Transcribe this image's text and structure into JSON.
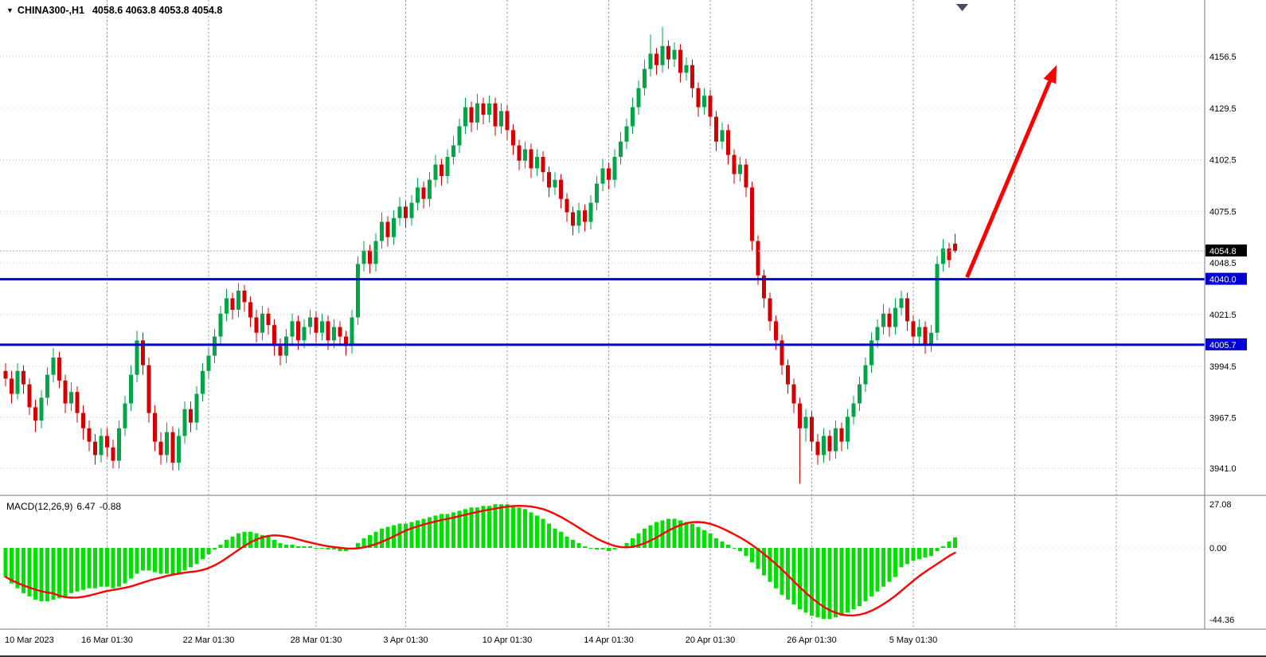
{
  "header": {
    "marker_icon": "▼",
    "symbol_period": "CHINA300-,H1",
    "ohlc_text": "4058.6 4063.8 4053.8 4054.8"
  },
  "indicator_label": {
    "name": "MACD(12,26,9)",
    "macd_value": "6.47",
    "signal_value": "-0.88"
  },
  "price_axis": {
    "ticks": [
      4156.5,
      4129.5,
      4102.5,
      4075.5,
      4048.5,
      4021.5,
      3994.5,
      3967.5,
      3941.0
    ],
    "current_price": {
      "label": "4054.8",
      "value": 4054.8,
      "bg": "#000000",
      "fg": "#ffffff"
    },
    "level_badges": [
      {
        "label": "4040.0",
        "value": 4040.0,
        "bg": "#0000d6",
        "fg": "#ffffff"
      },
      {
        "label": "4005.7",
        "value": 4005.7,
        "bg": "#0000d6",
        "fg": "#ffffff"
      }
    ]
  },
  "macd_axis": {
    "ticks": [
      {
        "label": "27.08",
        "value": 27.08
      },
      {
        "label": "0.00",
        "value": 0
      },
      {
        "label": "-44.36",
        "value": -44.36
      }
    ]
  },
  "time_axis": {
    "labels": [
      {
        "text": "10 Mar 2023",
        "index": 0
      },
      {
        "text": "16 Mar 01:30",
        "index": 17
      },
      {
        "text": "22 Mar 01:30",
        "index": 34
      },
      {
        "text": "28 Mar 01:30",
        "index": 52
      },
      {
        "text": "3 Apr 01:30",
        "index": 67
      },
      {
        "text": "10 Apr 01:30",
        "index": 84
      },
      {
        "text": "14 Apr 01:30",
        "index": 101
      },
      {
        "text": "20 Apr 01:30",
        "index": 118
      },
      {
        "text": "26 Apr 01:30",
        "index": 135
      },
      {
        "text": "5 May 01:30",
        "index": 152
      }
    ],
    "extra_gridline_indices": [
      169,
      186
    ]
  },
  "chart_data": {
    "type": "candlestick",
    "title": "CHINA300-,H1",
    "timeframe": "H1",
    "ohlc_last": {
      "open": 4058.6,
      "high": 4063.8,
      "low": 4053.8,
      "close": 4054.8
    },
    "price_axis_range": [
      3928,
      4186
    ],
    "horizontal_levels": [
      4040.0,
      4005.7
    ],
    "candles": [
      [
        3992,
        3996,
        3984,
        3988
      ],
      [
        3988,
        3992,
        3975,
        3980
      ],
      [
        3980,
        3996,
        3977,
        3992
      ],
      [
        3992,
        3995,
        3980,
        3985
      ],
      [
        3985,
        3988,
        3969,
        3973
      ],
      [
        3973,
        3977,
        3960,
        3966
      ],
      [
        3966,
        3982,
        3962,
        3978
      ],
      [
        3978,
        3994,
        3974,
        3990
      ],
      [
        3990,
        4004,
        3986,
        3999
      ],
      [
        3999,
        4002,
        3983,
        3987
      ],
      [
        3987,
        3990,
        3970,
        3975
      ],
      [
        3975,
        3986,
        3971,
        3981
      ],
      [
        3981,
        3984,
        3965,
        3970
      ],
      [
        3970,
        3974,
        3956,
        3962
      ],
      [
        3962,
        3966,
        3950,
        3955
      ],
      [
        3955,
        3959,
        3943,
        3948
      ],
      [
        3948,
        3962,
        3944,
        3958
      ],
      [
        3958,
        3962,
        3947,
        3952
      ],
      [
        3952,
        3956,
        3941,
        3945
      ],
      [
        3945,
        3966,
        3941,
        3962
      ],
      [
        3962,
        3979,
        3958,
        3975
      ],
      [
        3975,
        3995,
        3971,
        3990
      ],
      [
        3990,
        4013,
        3986,
        4008
      ],
      [
        4008,
        4012,
        3990,
        3995
      ],
      [
        3995,
        3999,
        3965,
        3970
      ],
      [
        3970,
        3974,
        3950,
        3955
      ],
      [
        3955,
        3960,
        3943,
        3948
      ],
      [
        3948,
        3965,
        3944,
        3960
      ],
      [
        3960,
        3963,
        3940,
        3944
      ],
      [
        3944,
        3962,
        3940,
        3958
      ],
      [
        3958,
        3976,
        3954,
        3972
      ],
      [
        3972,
        3976,
        3960,
        3965
      ],
      [
        3965,
        3984,
        3961,
        3980
      ],
      [
        3980,
        3996,
        3976,
        3992
      ],
      [
        3992,
        4004,
        3988,
        4000
      ],
      [
        4000,
        4014,
        3996,
        4010
      ],
      [
        4010,
        4026,
        4006,
        4022
      ],
      [
        4022,
        4035,
        4018,
        4030
      ],
      [
        4030,
        4033,
        4019,
        4024
      ],
      [
        4024,
        4038,
        4020,
        4034
      ],
      [
        4034,
        4037,
        4023,
        4028
      ],
      [
        4028,
        4031,
        4015,
        4020
      ],
      [
        4020,
        4024,
        4007,
        4012
      ],
      [
        4012,
        4026,
        4008,
        4022
      ],
      [
        4022,
        4025,
        4011,
        4016
      ],
      [
        4016,
        4019,
        4000,
        4005
      ],
      [
        4005,
        4009,
        3995,
        4000
      ],
      [
        4000,
        4014,
        3996,
        4010
      ],
      [
        4010,
        4022,
        4006,
        4018
      ],
      [
        4018,
        4021,
        4003,
        4008
      ],
      [
        4008,
        4019,
        4004,
        4015
      ],
      [
        4015,
        4024,
        4011,
        4020
      ],
      [
        4020,
        4023,
        4007,
        4012
      ],
      [
        4012,
        4022,
        4008,
        4018
      ],
      [
        4018,
        4021,
        4003,
        4008
      ],
      [
        4008,
        4019,
        4004,
        4015
      ],
      [
        4015,
        4018,
        4005,
        4010
      ],
      [
        4010,
        4013,
        4000,
        4005
      ],
      [
        4005,
        4024,
        4001,
        4020
      ],
      [
        4020,
        4052,
        4016,
        4048
      ],
      [
        4048,
        4060,
        4044,
        4055
      ],
      [
        4055,
        4058,
        4043,
        4048
      ],
      [
        4048,
        4064,
        4044,
        4060
      ],
      [
        4060,
        4075,
        4056,
        4070
      ],
      [
        4070,
        4073,
        4057,
        4062
      ],
      [
        4062,
        4076,
        4058,
        4072
      ],
      [
        4072,
        4083,
        4068,
        4078
      ],
      [
        4078,
        4081,
        4067,
        4072
      ],
      [
        4072,
        4084,
        4068,
        4080
      ],
      [
        4080,
        4093,
        4076,
        4088
      ],
      [
        4088,
        4091,
        4077,
        4082
      ],
      [
        4082,
        4096,
        4078,
        4092
      ],
      [
        4092,
        4105,
        4088,
        4100
      ],
      [
        4100,
        4103,
        4089,
        4094
      ],
      [
        4094,
        4108,
        4090,
        4104
      ],
      [
        4104,
        4115,
        4100,
        4110
      ],
      [
        4110,
        4124,
        4106,
        4120
      ],
      [
        4120,
        4135,
        4116,
        4130
      ],
      [
        4130,
        4133,
        4117,
        4122
      ],
      [
        4122,
        4137,
        4118,
        4132
      ],
      [
        4132,
        4135,
        4121,
        4126
      ],
      [
        4126,
        4136,
        4122,
        4132
      ],
      [
        4132,
        4135,
        4115,
        4120
      ],
      [
        4120,
        4132,
        4116,
        4128
      ],
      [
        4128,
        4131,
        4113,
        4118
      ],
      [
        4118,
        4121,
        4105,
        4110
      ],
      [
        4110,
        4113,
        4097,
        4102
      ],
      [
        4102,
        4112,
        4098,
        4108
      ],
      [
        4108,
        4111,
        4093,
        4098
      ],
      [
        4098,
        4108,
        4094,
        4104
      ],
      [
        4104,
        4107,
        4091,
        4096
      ],
      [
        4096,
        4099,
        4083,
        4088
      ],
      [
        4088,
        4096,
        4084,
        4092
      ],
      [
        4092,
        4095,
        4077,
        4082
      ],
      [
        4082,
        4085,
        4070,
        4075
      ],
      [
        4075,
        4078,
        4063,
        4068
      ],
      [
        4068,
        4080,
        4064,
        4076
      ],
      [
        4076,
        4079,
        4065,
        4070
      ],
      [
        4070,
        4084,
        4066,
        4080
      ],
      [
        4080,
        4094,
        4076,
        4090
      ],
      [
        4090,
        4103,
        4086,
        4098
      ],
      [
        4098,
        4101,
        4087,
        4092
      ],
      [
        4092,
        4108,
        4088,
        4104
      ],
      [
        4104,
        4117,
        4100,
        4112
      ],
      [
        4112,
        4124,
        4108,
        4120
      ],
      [
        4120,
        4135,
        4116,
        4130
      ],
      [
        4130,
        4144,
        4126,
        4140
      ],
      [
        4140,
        4155,
        4136,
        4150
      ],
      [
        4150,
        4168,
        4146,
        4158
      ],
      [
        4158,
        4161,
        4147,
        4152
      ],
      [
        4152,
        4172,
        4148,
        4162
      ],
      [
        4162,
        4165,
        4150,
        4155
      ],
      [
        4155,
        4164,
        4151,
        4160
      ],
      [
        4160,
        4163,
        4143,
        4148
      ],
      [
        4148,
        4156,
        4144,
        4152
      ],
      [
        4152,
        4155,
        4135,
        4140
      ],
      [
        4140,
        4143,
        4125,
        4130
      ],
      [
        4130,
        4140,
        4126,
        4136
      ],
      [
        4136,
        4139,
        4120,
        4125
      ],
      [
        4125,
        4128,
        4107,
        4112
      ],
      [
        4112,
        4122,
        4108,
        4118
      ],
      [
        4118,
        4121,
        4100,
        4105
      ],
      [
        4105,
        4108,
        4090,
        4095
      ],
      [
        4095,
        4104,
        4091,
        4100
      ],
      [
        4100,
        4103,
        4083,
        4088
      ],
      [
        4088,
        4091,
        4055,
        4060
      ],
      [
        4060,
        4063,
        4037,
        4042
      ],
      [
        4042,
        4045,
        4025,
        4030
      ],
      [
        4030,
        4033,
        4013,
        4018
      ],
      [
        4018,
        4021,
        4003,
        4008
      ],
      [
        4008,
        4011,
        3990,
        3995
      ],
      [
        3995,
        3998,
        3980,
        3985
      ],
      [
        3985,
        3988,
        3970,
        3975
      ],
      [
        3975,
        3978,
        3933,
        3962
      ],
      [
        3962,
        3972,
        3955,
        3968
      ],
      [
        3968,
        3971,
        3950,
        3955
      ],
      [
        3955,
        3959,
        3943,
        3948
      ],
      [
        3948,
        3962,
        3944,
        3958
      ],
      [
        3958,
        3961,
        3945,
        3950
      ],
      [
        3950,
        3966,
        3946,
        3962
      ],
      [
        3962,
        3965,
        3950,
        3955
      ],
      [
        3955,
        3972,
        3951,
        3968
      ],
      [
        3968,
        3979,
        3964,
        3975
      ],
      [
        3975,
        3989,
        3971,
        3985
      ],
      [
        3985,
        3999,
        3981,
        3995
      ],
      [
        3995,
        4012,
        3991,
        4008
      ],
      [
        4008,
        4019,
        4004,
        4015
      ],
      [
        4015,
        4027,
        4011,
        4022
      ],
      [
        4022,
        4025,
        4010,
        4015
      ],
      [
        4015,
        4030,
        4011,
        4025
      ],
      [
        4025,
        4034,
        4021,
        4030
      ],
      [
        4030,
        4033,
        4013,
        4018
      ],
      [
        4018,
        4021,
        4005,
        4010
      ],
      [
        4010,
        4019,
        4005,
        4015
      ],
      [
        4015,
        4018,
        4001,
        4006
      ],
      [
        4006,
        4016,
        4002,
        4012
      ],
      [
        4012,
        4052,
        4008,
        4048
      ],
      [
        4048,
        4061,
        4044,
        4056
      ],
      [
        4056,
        4059,
        4046,
        4050
      ],
      [
        4058.6,
        4063.8,
        4053.8,
        4054.8
      ]
    ],
    "indicators": {
      "macd": {
        "params": "12,26,9",
        "macd_last": 6.47,
        "signal_last": -0.88,
        "scale_range": [
          -44.36,
          27.08
        ],
        "histogram": [
          -18,
          -22,
          -25,
          -28,
          -30,
          -32,
          -33,
          -33,
          -32,
          -31,
          -30,
          -28,
          -27,
          -26,
          -25,
          -25,
          -24,
          -24,
          -25,
          -24,
          -22,
          -19,
          -16,
          -14,
          -14,
          -15,
          -16,
          -16,
          -17,
          -16,
          -14,
          -12,
          -10,
          -7,
          -4,
          -1,
          2,
          5,
          7,
          9,
          10,
          10,
          9,
          8,
          7,
          5,
          3,
          2,
          2,
          1,
          1,
          1,
          0,
          0,
          -1,
          -1,
          -2,
          -2,
          0,
          3,
          6,
          8,
          10,
          12,
          13,
          14,
          15,
          15,
          16,
          17,
          18,
          19,
          20,
          21,
          21,
          22,
          23,
          24,
          25,
          25,
          26,
          26,
          27,
          27,
          27,
          26,
          25,
          24,
          22,
          20,
          18,
          15,
          12,
          10,
          7,
          5,
          3,
          1,
          0,
          -1,
          -1,
          -2,
          -1,
          1,
          3,
          6,
          9,
          12,
          14,
          16,
          17,
          18,
          18,
          17,
          16,
          15,
          13,
          11,
          9,
          6,
          4,
          2,
          0,
          -2,
          -5,
          -9,
          -13,
          -17,
          -21,
          -25,
          -29,
          -32,
          -35,
          -38,
          -40,
          -42,
          -43,
          -44,
          -44,
          -43,
          -42,
          -40,
          -38,
          -36,
          -33,
          -30,
          -27,
          -24,
          -21,
          -18,
          -12,
          -10,
          -8,
          -7,
          -6,
          -5,
          -2,
          1,
          4,
          6.47
        ]
      }
    },
    "annotations": [
      {
        "type": "arrow",
        "color": "#ff0000",
        "from": {
          "bar": 161,
          "price": 4041
        },
        "to": {
          "bar": 176,
          "price": 4152
        }
      }
    ]
  },
  "colors": {
    "background": "#ffffff",
    "candle_up": "#00a548",
    "candle_down": "#d40000",
    "macd_bar": "#00e000",
    "signal_line": "#ff0000",
    "level_line": "#0000d6",
    "grid_dotted": "#c4c4c4",
    "grid_dashed": "#8f8f8f",
    "panel_border": "#7a7a7a",
    "current_price_line": "#a8a8a8",
    "axis_text": "#000000",
    "shift_marker": "#4a4a66"
  }
}
